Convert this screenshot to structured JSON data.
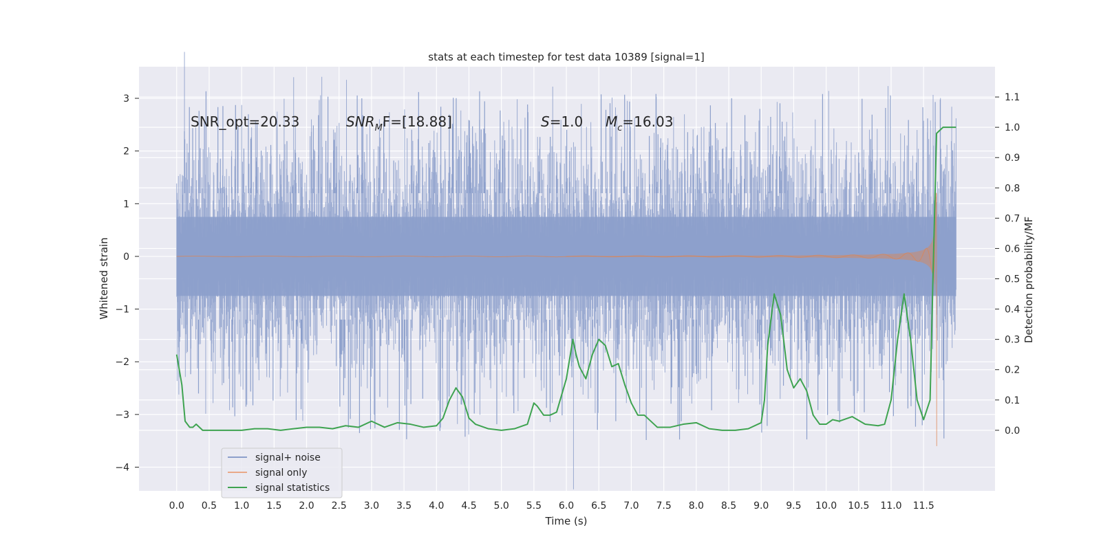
{
  "chart_data": {
    "type": "line",
    "title": "stats at each timestep for test data 10389 [signal=1]",
    "xlabel": "Time (s)",
    "ylabel": "Whitened strain",
    "y2label": "Detection probability/MF",
    "xlim": [
      -0.58,
      12.6
    ],
    "ylim": [
      -4.45,
      3.6
    ],
    "y2lim": [
      -0.2,
      1.2
    ],
    "xticks": [
      0.0,
      0.5,
      1.0,
      1.5,
      2.0,
      2.5,
      3.0,
      3.5,
      4.0,
      4.5,
      5.0,
      5.5,
      6.0,
      6.5,
      7.0,
      7.5,
      8.0,
      8.5,
      9.0,
      9.5,
      10.0,
      10.5,
      11.0,
      11.5
    ],
    "xtick_labels": [
      "0.0",
      "0.5",
      "1.0",
      "1.5",
      "2.0",
      "2.5",
      "3.0",
      "3.5",
      "4.0",
      "4.5",
      "5.0",
      "5.5",
      "6.0",
      "6.5",
      "7.0",
      "7.5",
      "8.0",
      "8.5",
      "9.0",
      "9.5",
      "10.0",
      "10.5",
      "11.0",
      "11.5"
    ],
    "yticks": [
      3,
      2,
      1,
      0,
      -1,
      -2,
      -3,
      -4
    ],
    "ytick_labels": [
      "3",
      "2",
      "1",
      "0",
      "−1",
      "−2",
      "−3",
      "−4"
    ],
    "y2ticks": [
      1.1,
      1.0,
      0.9,
      0.8,
      0.7,
      0.6,
      0.5,
      0.4,
      0.3,
      0.2,
      0.1,
      0.0
    ],
    "y2tick_labels": [
      "1.1",
      "1.0",
      "0.9",
      "0.8",
      "0.7",
      "0.6",
      "0.5",
      "0.4",
      "0.3",
      "0.2",
      "0.1",
      "0.0"
    ],
    "annotations": {
      "snr_opt": "SNR_opt=20.33",
      "snr_mf_base": "SNR",
      "snr_mf_sub": "M",
      "snr_mf_rest": "F=[18.88]",
      "s_var": "S",
      "s_val": "=1.0",
      "mc_var": "M",
      "mc_sub": "c",
      "mc_val": "=16.03"
    },
    "legend": {
      "location": "lower-left",
      "entries": [
        "signal+ noise",
        "signal only",
        "signal statistics"
      ]
    },
    "colors": {
      "noise": "#8c9fcb",
      "signal": "#dd8452",
      "stat": "#3ea350",
      "background": "#eaeaf2",
      "grid": "#ffffff"
    },
    "series": [
      {
        "name": "signal statistics",
        "x": [
          0.0,
          0.08,
          0.13,
          0.2,
          0.25,
          0.3,
          0.4,
          0.5,
          0.6,
          0.8,
          1.0,
          1.2,
          1.4,
          1.6,
          1.8,
          2.0,
          2.2,
          2.4,
          2.6,
          2.8,
          3.0,
          3.2,
          3.4,
          3.6,
          3.8,
          4.0,
          4.1,
          4.2,
          4.3,
          4.4,
          4.5,
          4.6,
          4.8,
          5.0,
          5.2,
          5.4,
          5.5,
          5.55,
          5.65,
          5.75,
          5.85,
          6.0,
          6.1,
          6.15,
          6.2,
          6.3,
          6.4,
          6.5,
          6.6,
          6.7,
          6.8,
          6.9,
          7.0,
          7.1,
          7.2,
          7.4,
          7.6,
          7.8,
          8.0,
          8.2,
          8.4,
          8.6,
          8.8,
          9.0,
          9.05,
          9.1,
          9.2,
          9.3,
          9.4,
          9.5,
          9.6,
          9.7,
          9.8,
          9.9,
          10.0,
          10.1,
          10.2,
          10.4,
          10.6,
          10.8,
          10.9,
          11.0,
          11.1,
          11.2,
          11.3,
          11.4,
          11.5,
          11.6,
          11.65,
          11.7,
          11.8,
          12.0
        ],
        "values": [
          0.25,
          0.15,
          0.03,
          0.01,
          0.01,
          0.02,
          0.0,
          0.0,
          0.0,
          0.0,
          0.0,
          0.005,
          0.005,
          0.0,
          0.005,
          0.01,
          0.01,
          0.005,
          0.015,
          0.01,
          0.03,
          0.01,
          0.025,
          0.02,
          0.01,
          0.015,
          0.04,
          0.1,
          0.14,
          0.11,
          0.04,
          0.02,
          0.005,
          0.0,
          0.005,
          0.02,
          0.09,
          0.08,
          0.05,
          0.05,
          0.06,
          0.17,
          0.3,
          0.25,
          0.21,
          0.17,
          0.25,
          0.3,
          0.28,
          0.21,
          0.22,
          0.15,
          0.09,
          0.05,
          0.05,
          0.01,
          0.01,
          0.02,
          0.025,
          0.005,
          0.0,
          0.0,
          0.005,
          0.025,
          0.1,
          0.28,
          0.45,
          0.38,
          0.2,
          0.14,
          0.17,
          0.13,
          0.05,
          0.02,
          0.02,
          0.035,
          0.03,
          0.045,
          0.02,
          0.015,
          0.02,
          0.1,
          0.3,
          0.45,
          0.3,
          0.1,
          0.035,
          0.1,
          0.55,
          0.98,
          1.0,
          1.0
        ]
      },
      {
        "name": "signal only",
        "x": [
          0.0,
          11.7
        ],
        "values": [
          0.0,
          0.0
        ]
      },
      {
        "name": "signal+ noise",
        "x": [
          0.0,
          12.0
        ],
        "values": [
          0.0,
          0.0
        ]
      }
    ]
  }
}
